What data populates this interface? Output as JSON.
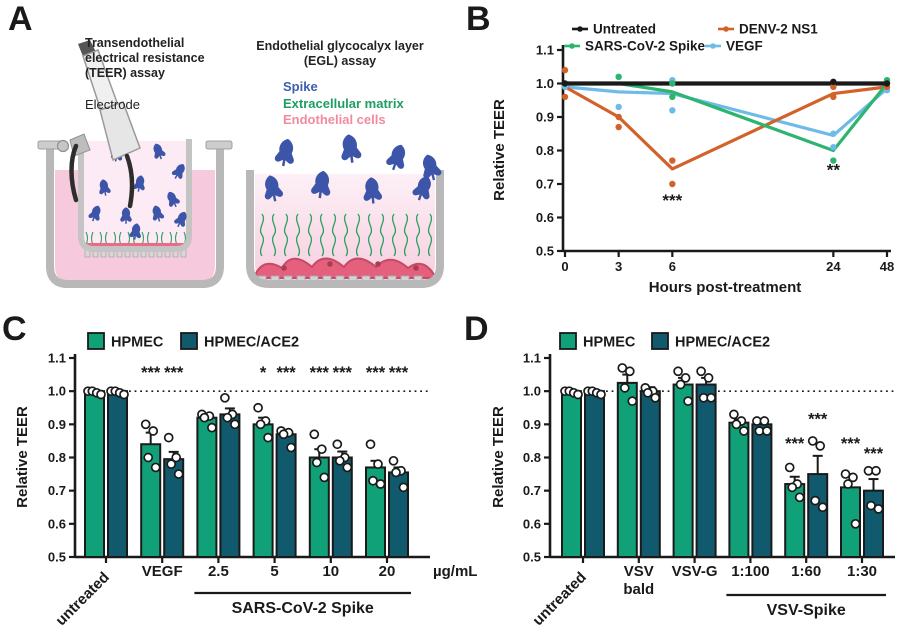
{
  "panels": {
    "A": {
      "label": "A",
      "teer_title": "Transendothelial\nelectrical resistance\n(TEER) assay",
      "electrode_label": "Electrode",
      "egl_title": "Endothelial glycocalyx layer\n(EGL) assay",
      "legend": [
        {
          "label": "Spike",
          "color": "#3d5fae"
        },
        {
          "label": "Extracellular matrix",
          "color": "#1d9e60"
        },
        {
          "label": "Endothelial cells",
          "color": "#f28ba0"
        }
      ],
      "colors": {
        "spike": "#3d55a8",
        "ecm": "#2a9e5f",
        "cells": "#e4607c",
        "medium": "#f7c9dc",
        "well_wall": "#b8b8b8"
      }
    },
    "B": {
      "label": "B"
    },
    "C": {
      "label": "C"
    },
    "D": {
      "label": "D"
    }
  },
  "chart_data": [
    {
      "panel": "B",
      "type": "line",
      "title": "",
      "xlabel": "Hours post-treatment",
      "ylabel": "Relative TEER",
      "x_ticks": [
        "0",
        "3",
        "6",
        "24",
        "48"
      ],
      "x_positions": [
        0,
        1,
        2,
        5,
        6
      ],
      "ylim": [
        0.5,
        1.1
      ],
      "y_ticks": [
        0.5,
        0.6,
        0.7,
        0.8,
        0.9,
        1.0,
        1.1
      ],
      "grid": false,
      "legend_position": "top",
      "series": [
        {
          "name": "VEGF",
          "color": "#6fbbe8",
          "width": 3.2,
          "legend_slot": [
            1,
            1
          ],
          "values": [
            0.99,
            0.975,
            0.97,
            0.845,
            0.985
          ],
          "points": [
            [
              0,
              0.99
            ],
            [
              1,
              0.93
            ],
            [
              2,
              1.01
            ],
            [
              2,
              0.92
            ],
            [
              3,
              0.85
            ],
            [
              3,
              0.81
            ],
            [
              4,
              0.98
            ]
          ]
        },
        {
          "name": "DENV-2 NS1",
          "color": "#d2622a",
          "width": 3.2,
          "legend_slot": [
            0,
            1
          ],
          "values": [
            0.99,
            0.9,
            0.745,
            0.97,
            0.99
          ],
          "points": [
            [
              0,
              1.04
            ],
            [
              0,
              0.96
            ],
            [
              1,
              0.9
            ],
            [
              1,
              0.87
            ],
            [
              2,
              0.77
            ],
            [
              2,
              0.7
            ],
            [
              3,
              0.99
            ],
            [
              3,
              0.96
            ],
            [
              4,
              0.99
            ]
          ]
        },
        {
          "name": "SARS-CoV-2 Spike",
          "color": "#2db46f",
          "width": 3.2,
          "legend_slot": [
            1,
            0
          ],
          "values": [
            1.0,
            1.0,
            0.975,
            0.8,
            1.0
          ],
          "points": [
            [
              1,
              1.02
            ],
            [
              2,
              1.0
            ],
            [
              2,
              0.96
            ],
            [
              3,
              0.77
            ],
            [
              4,
              1.01
            ]
          ]
        },
        {
          "name": "Untreated",
          "color": "#1a1a1a",
          "width": 4.2,
          "legend_slot": [
            0,
            0
          ],
          "values": [
            1.0,
            1.0,
            1.0,
            1.0,
            1.0
          ],
          "points": [
            [
              0,
              1.0
            ],
            [
              3,
              1.005
            ],
            [
              4,
              1.0
            ]
          ]
        }
      ],
      "annotations": [
        {
          "text": "***",
          "x_index": 2,
          "y": 0.635
        },
        {
          "text": "**",
          "x_index": 3,
          "y": 0.725
        }
      ]
    },
    {
      "panel": "C",
      "type": "bar",
      "ylabel": "Relative TEER",
      "ylim": [
        0.5,
        1.1
      ],
      "y_ticks": [
        0.5,
        0.6,
        0.7,
        0.8,
        0.9,
        1.0,
        1.1
      ],
      "grid": false,
      "legend_position": "top-left",
      "baseline_y": 1.0,
      "categories": [
        "untreated",
        "VEGF",
        "2.5",
        "5",
        "10",
        "20"
      ],
      "rotated_categories": [
        0
      ],
      "unit_label": "µg/mL",
      "group_bracket": {
        "label": "SARS-CoV-2 Spike",
        "from": 2,
        "to": 5
      },
      "series": [
        {
          "name": "HPMEC",
          "color": "#10a178",
          "values": [
            1.0,
            0.84,
            0.92,
            0.9,
            0.8,
            0.77
          ],
          "errors": [
            0,
            0.035,
            0.012,
            0.02,
            0.025,
            0.02
          ],
          "points": [
            [
              1.0,
              1.0,
              0.995,
              0.99
            ],
            [
              0.9,
              0.88,
              0.8,
              0.77
            ],
            [
              0.93,
              0.925,
              0.92,
              0.89
            ],
            [
              0.95,
              0.91,
              0.9,
              0.86
            ],
            [
              0.87,
              0.825,
              0.785,
              0.74
            ],
            [
              0.84,
              0.78,
              0.73,
              0.72
            ]
          ]
        },
        {
          "name": "HPMEC/ACE2",
          "color": "#11596c",
          "values": [
            1.0,
            0.795,
            0.93,
            0.87,
            0.8,
            0.755
          ],
          "errors": [
            0,
            0.022,
            0.018,
            0.012,
            0.018,
            0.015
          ],
          "points": [
            [
              1.0,
              1.0,
              0.995,
              0.99
            ],
            [
              0.86,
              0.8,
              0.78,
              0.75
            ],
            [
              0.98,
              0.93,
              0.92,
              0.9
            ],
            [
              0.88,
              0.875,
              0.87,
              0.83
            ],
            [
              0.84,
              0.8,
              0.79,
              0.77
            ],
            [
              0.79,
              0.76,
              0.755,
              0.71
            ]
          ]
        }
      ],
      "significance": [
        {
          "category": 1,
          "series": 0,
          "text": "***",
          "y": 1.04
        },
        {
          "category": 1,
          "series": 1,
          "text": "***",
          "y": 1.04
        },
        {
          "category": 3,
          "series": 0,
          "text": "*",
          "y": 1.04
        },
        {
          "category": 3,
          "series": 1,
          "text": "***",
          "y": 1.04
        },
        {
          "category": 4,
          "series": 0,
          "text": "***",
          "y": 1.04
        },
        {
          "category": 4,
          "series": 1,
          "text": "***",
          "y": 1.04
        },
        {
          "category": 5,
          "series": 0,
          "text": "***",
          "y": 1.04
        },
        {
          "category": 5,
          "series": 1,
          "text": "***",
          "y": 1.04
        }
      ]
    },
    {
      "panel": "D",
      "type": "bar",
      "ylabel": "Relative TEER",
      "ylim": [
        0.5,
        1.1
      ],
      "y_ticks": [
        0.5,
        0.6,
        0.7,
        0.8,
        0.9,
        1.0,
        1.1
      ],
      "grid": false,
      "legend_position": "top-left",
      "baseline_y": 1.0,
      "categories": [
        "untreated",
        "VSV\nbald",
        "VSV-G",
        "1:100",
        "1:60",
        "1:30"
      ],
      "rotated_categories": [
        0
      ],
      "group_bracket": {
        "label": "VSV-Spike",
        "from": 3,
        "to": 5
      },
      "series": [
        {
          "name": "HPMEC",
          "color": "#10a178",
          "values": [
            1.0,
            1.025,
            1.02,
            0.905,
            0.72,
            0.71
          ],
          "errors": [
            0,
            0.025,
            0.02,
            0.01,
            0.022,
            0.04
          ],
          "points": [
            [
              1.0,
              1.0,
              0.995,
              0.99
            ],
            [
              1.07,
              1.06,
              1.01,
              0.97
            ],
            [
              1.06,
              1.04,
              1.02,
              0.97
            ],
            [
              0.93,
              0.91,
              0.9,
              0.88
            ],
            [
              0.77,
              0.72,
              0.71,
              0.68
            ],
            [
              0.75,
              0.74,
              0.72,
              0.6
            ]
          ]
        },
        {
          "name": "HPMEC/ACE2",
          "color": "#11596c",
          "values": [
            1.0,
            1.0,
            1.02,
            0.9,
            0.75,
            0.7
          ],
          "errors": [
            0,
            0.012,
            0.02,
            0.012,
            0.055,
            0.035
          ],
          "points": [
            [
              1.0,
              1.0,
              0.995,
              0.99
            ],
            [
              1.01,
              1.0,
              0.995,
              0.98
            ],
            [
              1.06,
              1.04,
              0.98,
              0.98
            ],
            [
              0.91,
              0.91,
              0.88,
              0.88
            ],
            [
              0.85,
              0.835,
              0.67,
              0.65
            ],
            [
              0.76,
              0.76,
              0.655,
              0.645
            ]
          ]
        }
      ],
      "significance": [
        {
          "category": 4,
          "series": 0,
          "text": "***",
          "y": 0.825
        },
        {
          "category": 4,
          "series": 1,
          "text": "***",
          "y": 0.9
        },
        {
          "category": 5,
          "series": 0,
          "text": "***",
          "y": 0.825
        },
        {
          "category": 5,
          "series": 1,
          "text": "***",
          "y": 0.795
        }
      ]
    }
  ]
}
